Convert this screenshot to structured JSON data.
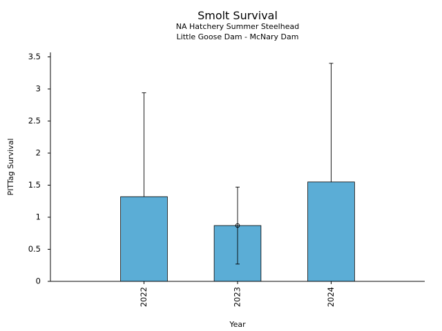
{
  "chart_data": {
    "type": "bar",
    "title": "Smolt Survival",
    "subtitle": [
      "NA Hatchery Summer Steelhead",
      "Little Goose Dam - McNary Dam"
    ],
    "xlabel": "Year",
    "ylabel": "PITTag Survival",
    "categories": [
      "2022",
      "2023",
      "2024"
    ],
    "values": [
      1.32,
      0.87,
      1.55
    ],
    "error_low": [
      1.32,
      0.27,
      1.55
    ],
    "error_high": [
      2.94,
      1.47,
      3.4
    ],
    "point_marker": [
      false,
      true,
      false
    ],
    "ylim": [
      0,
      3.57
    ],
    "yticks": [
      0,
      0.5,
      1,
      1.5,
      2,
      2.5,
      3,
      3.5
    ],
    "ytick_labels": [
      "0",
      "0.5",
      "1",
      "1.5",
      "2",
      "2.5",
      "3",
      "3.5"
    ],
    "bar_color": "#5badd6",
    "grid": false,
    "legend": "none"
  }
}
